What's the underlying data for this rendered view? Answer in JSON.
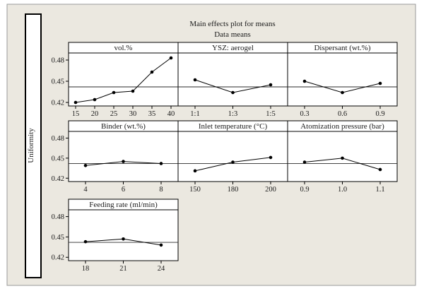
{
  "figure": {
    "title": "Main effects plot for means",
    "subtitle": "Data means",
    "ylabel": "Uniformity",
    "colors": {
      "background": "#ebe8e0",
      "panel": "#ffffff",
      "line": "#000000",
      "mean_line": "#2a2a2a"
    }
  },
  "chart_data": [
    {
      "type": "line",
      "title": "vol.%",
      "categories": [
        "15",
        "20",
        "25",
        "30",
        "35",
        "40"
      ],
      "values": [
        0.42,
        0.424,
        0.434,
        0.436,
        0.463,
        0.483
      ],
      "mean": 0.442,
      "ylim": [
        0.415,
        0.49
      ],
      "yticks": [
        "0.48",
        "0.45",
        "0.42"
      ],
      "show_yaxis": true
    },
    {
      "type": "line",
      "title": "YSZ: aerogel",
      "categories": [
        "1:1",
        "1:3",
        "1:5"
      ],
      "values": [
        0.452,
        0.434,
        0.445
      ],
      "mean": 0.442,
      "ylim": [
        0.415,
        0.49
      ],
      "show_yaxis": false
    },
    {
      "type": "line",
      "title": "Dispersant (wt.%)",
      "categories": [
        "0.3",
        "0.6",
        "0.9"
      ],
      "values": [
        0.45,
        0.434,
        0.447
      ],
      "mean": 0.442,
      "ylim": [
        0.415,
        0.49
      ],
      "show_yaxis": false
    },
    {
      "type": "line",
      "title": "Binder (wt.%)",
      "categories": [
        "4",
        "6",
        "8"
      ],
      "values": [
        0.439,
        0.445,
        0.442
      ],
      "mean": 0.442,
      "ylim": [
        0.415,
        0.49
      ],
      "yticks": [
        "0.48",
        "0.45",
        "0.42"
      ],
      "show_yaxis": true
    },
    {
      "type": "line",
      "title": "Inlet temperature (°C)",
      "categories": [
        "150",
        "180",
        "200"
      ],
      "values": [
        0.431,
        0.444,
        0.451
      ],
      "mean": 0.442,
      "ylim": [
        0.415,
        0.49
      ],
      "show_yaxis": false
    },
    {
      "type": "line",
      "title": "Atomization pressure (bar)",
      "categories": [
        "0.9",
        "1.0",
        "1.1"
      ],
      "values": [
        0.444,
        0.45,
        0.433
      ],
      "mean": 0.442,
      "ylim": [
        0.415,
        0.49
      ],
      "show_yaxis": false
    },
    {
      "type": "line",
      "title": "Feeding rate (ml/min)",
      "categories": [
        "18",
        "21",
        "24"
      ],
      "values": [
        0.443,
        0.447,
        0.438
      ],
      "mean": 0.442,
      "ylim": [
        0.415,
        0.49
      ],
      "yticks": [
        "0.48",
        "0.45",
        "0.42"
      ],
      "show_yaxis": true
    }
  ]
}
